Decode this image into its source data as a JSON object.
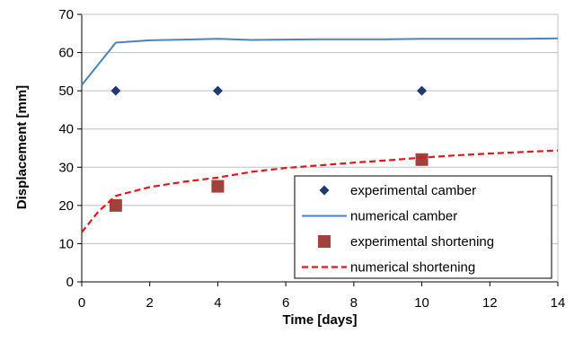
{
  "chart_data": {
    "type": "line",
    "xlabel": "Time [days]",
    "ylabel": "Displacement [mm]",
    "xlim": [
      0,
      14
    ],
    "ylim": [
      0,
      70
    ],
    "xticks": [
      "0",
      "2",
      "4",
      "6",
      "8",
      "10",
      "12",
      "14"
    ],
    "yticks": [
      "0",
      "10",
      "20",
      "30",
      "40",
      "50",
      "60",
      "70"
    ],
    "grid": "horizontal",
    "legend_position": "bottom-right",
    "series": [
      {
        "name": "experimental camber",
        "kind": "scatter",
        "marker": "diamond",
        "color": "#1f3a6e",
        "x": [
          1,
          4,
          10
        ],
        "y": [
          50,
          50,
          50
        ]
      },
      {
        "name": "numerical camber",
        "kind": "line",
        "style": "solid",
        "color": "#4f81bd",
        "x": [
          0,
          1,
          2,
          3,
          4,
          5,
          6,
          7,
          8,
          9,
          10,
          11,
          12,
          13,
          14
        ],
        "y": [
          51.5,
          62.6,
          63.2,
          63.4,
          63.6,
          63.3,
          63.4,
          63.5,
          63.5,
          63.5,
          63.6,
          63.6,
          63.6,
          63.6,
          63.7
        ]
      },
      {
        "name": "experimental shortening",
        "kind": "scatter",
        "marker": "square",
        "color": "#a0413c",
        "x": [
          1,
          4,
          10
        ],
        "y": [
          20,
          25,
          32
        ]
      },
      {
        "name": "numerical shortening",
        "kind": "line",
        "style": "dashed",
        "color": "#e3161b",
        "x": [
          0,
          0.5,
          1,
          2,
          3,
          4,
          5,
          6,
          7,
          8,
          9,
          10,
          11,
          12,
          13,
          14
        ],
        "y": [
          13,
          18.5,
          22.5,
          24.8,
          26.2,
          27.3,
          28.8,
          29.8,
          30.5,
          31.2,
          31.8,
          32.5,
          33.1,
          33.6,
          34.0,
          34.4
        ]
      }
    ]
  }
}
